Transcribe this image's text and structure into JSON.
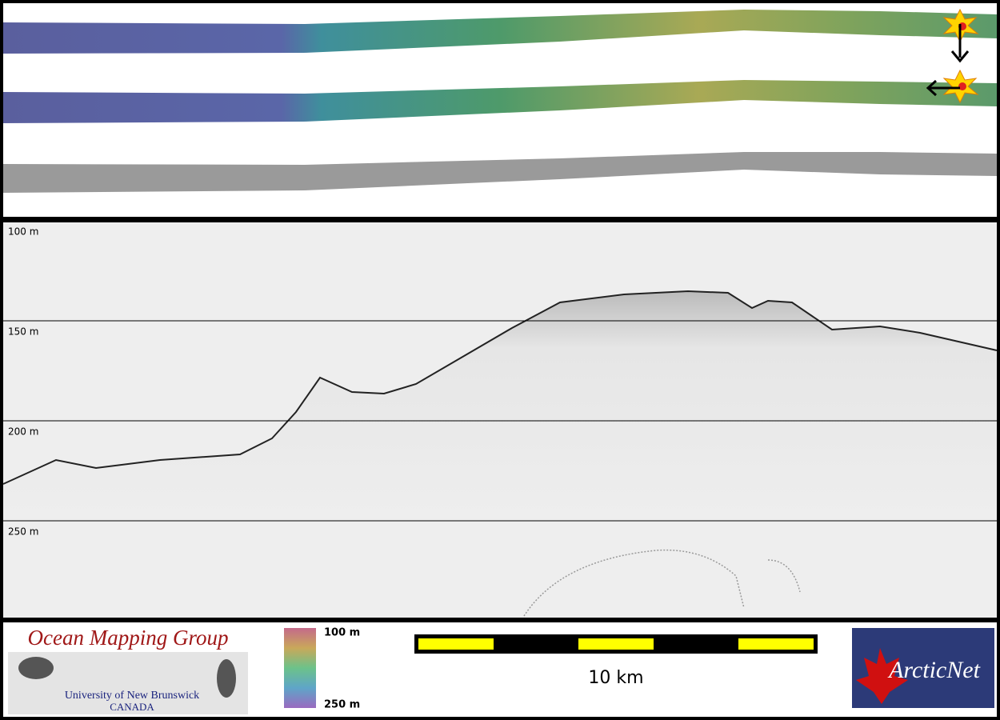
{
  "profile": {
    "depth_labels": [
      "100 m",
      "150 m",
      "200 m",
      "250 m"
    ]
  },
  "footer": {
    "logo_title": "Ocean Mapping Group",
    "logo_university": "University of New Brunswick",
    "logo_country": "CANADA",
    "colorbar_top": "100 m",
    "colorbar_bottom": "250 m",
    "scale_label": "10 km",
    "partner_logo": "ArcticNet"
  }
}
